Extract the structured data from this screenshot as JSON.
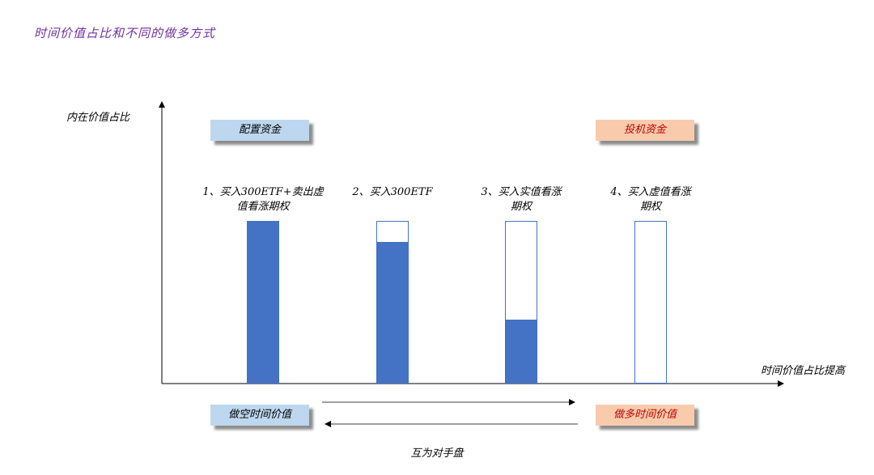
{
  "title": "时间价值占比和不同的做多方式",
  "y_axis_label": "内在价值占比",
  "x_axis_label": "时间价值占比提高",
  "top_left_box": "配置资金",
  "top_right_box": "投机资金",
  "bottom_left_box": "做空时间价值",
  "bottom_right_box": "做多时间价值",
  "bottom_caption": "互为对手盘",
  "strategies": [
    {
      "label": "1、买入300ETF+卖出虚值看涨期权",
      "intrinsic_fraction": 1.0
    },
    {
      "label": "2、买入300ETF",
      "intrinsic_fraction": 0.875
    },
    {
      "label": "3、买入实值看涨期权",
      "intrinsic_fraction": 0.39
    },
    {
      "label": "4、买入虚值看涨期权",
      "intrinsic_fraction": 0.0
    }
  ],
  "colors": {
    "bar": "#4472c4",
    "title": "#7030a0",
    "blue_box": "#bdd7ee",
    "orange_box": "#f8cbad",
    "orange_text": "#c00000"
  }
}
